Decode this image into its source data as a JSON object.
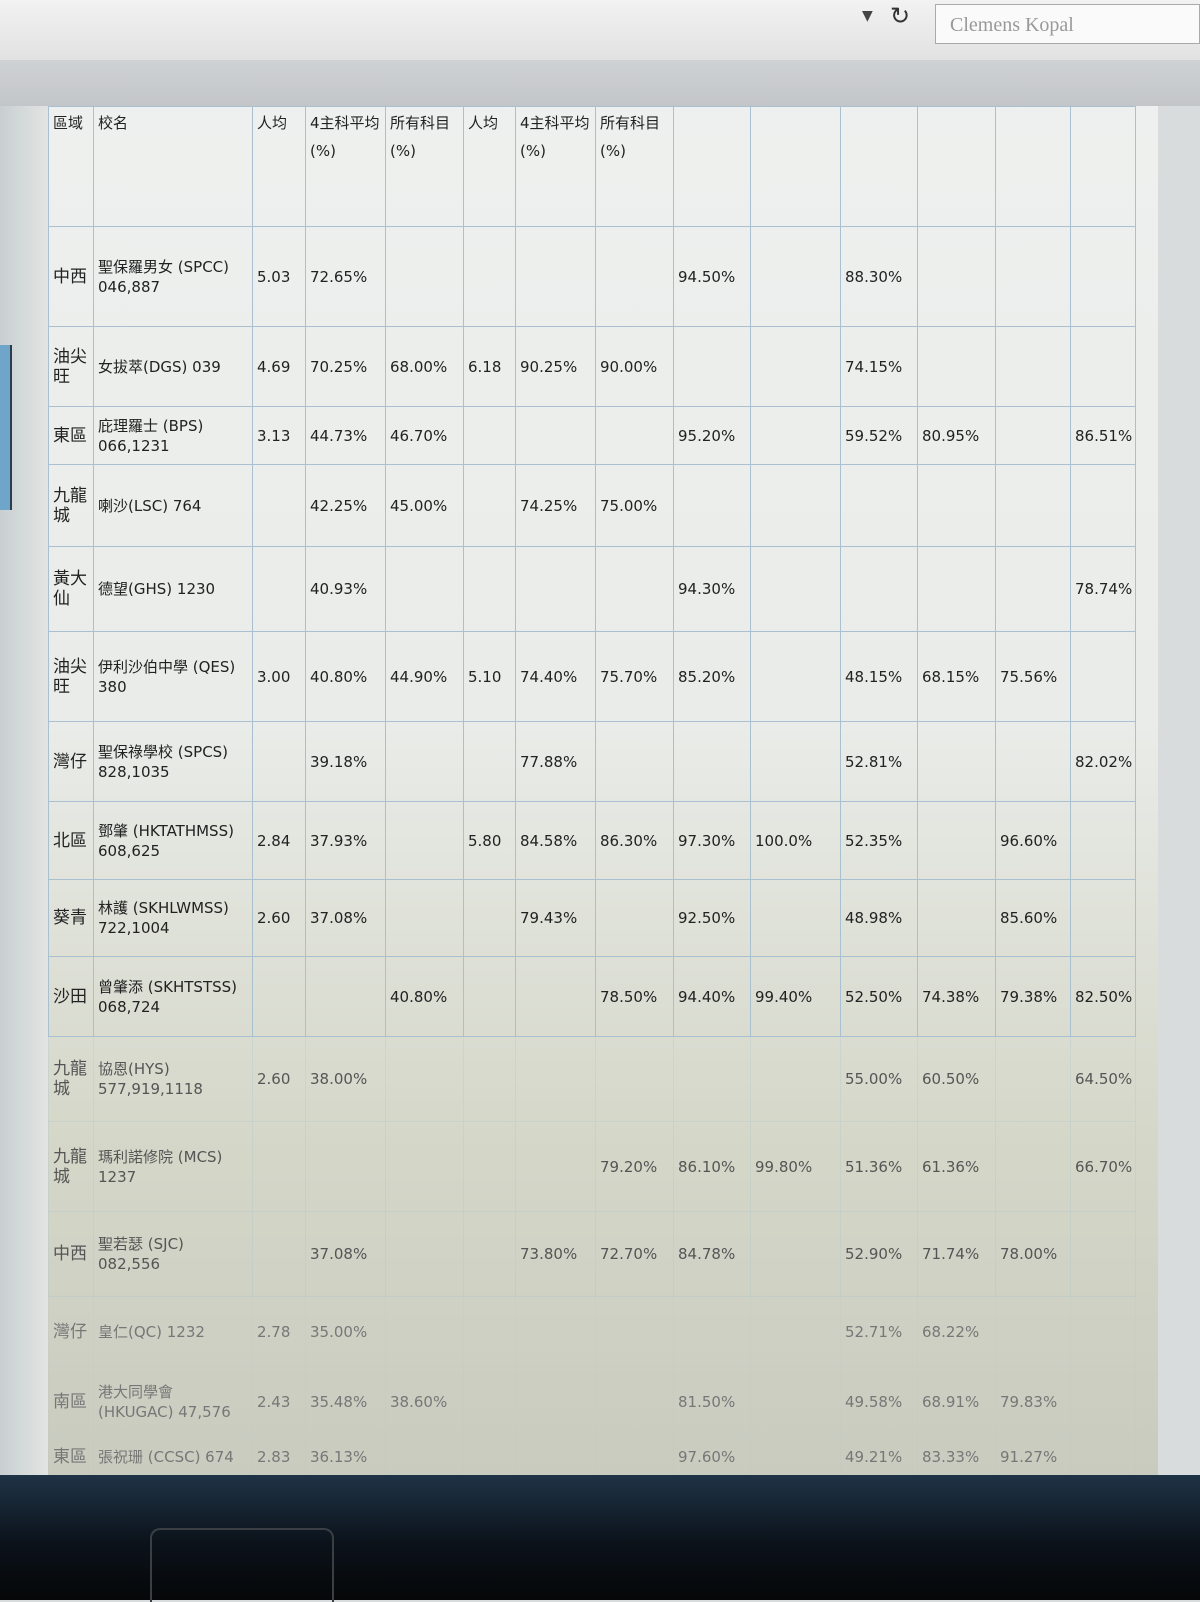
{
  "browser": {
    "dropdown_icon": "chevron-down-icon",
    "refresh_icon": "refresh-icon",
    "search_value": "Clemens Kopal"
  },
  "table": {
    "headers": [
      "區域",
      "校名",
      "人均",
      "4主科平均(%)",
      "所有科目(%)",
      "人均",
      "4主科平均(%)",
      "所有科目(%)",
      "",
      "",
      "",
      "",
      "",
      ""
    ],
    "rows": [
      {
        "region": "中西",
        "name": "聖保羅男女 (SPCC) 046,887",
        "cells": [
          "5.03",
          "72.65%",
          "",
          "",
          "",
          "",
          "94.50%",
          "",
          "88.30%",
          "",
          "",
          ""
        ]
      },
      {
        "region": "油尖旺",
        "name": "女拔萃(DGS) 039",
        "cells": [
          "4.69",
          "70.25%",
          "68.00%",
          "6.18",
          "90.25%",
          "90.00%",
          "",
          "",
          "74.15%",
          "",
          "",
          ""
        ]
      },
      {
        "region": "東區",
        "name": "庇理羅士 (BPS) 066,1231",
        "cells": [
          "3.13",
          "44.73%",
          "46.70%",
          "",
          "",
          "",
          "95.20%",
          "",
          "59.52%",
          "80.95%",
          "",
          "86.51%"
        ]
      },
      {
        "region": "九龍城",
        "name": "喇沙(LSC) 764",
        "cells": [
          "",
          "42.25%",
          "45.00%",
          "",
          "74.25%",
          "75.00%",
          "",
          "",
          "",
          "",
          "",
          ""
        ]
      },
      {
        "region": "黃大仙",
        "name": "德望(GHS) 1230",
        "cells": [
          "",
          "40.93%",
          "",
          "",
          "",
          "",
          "94.30%",
          "",
          "",
          "",
          "",
          "78.74%"
        ]
      },
      {
        "region": "油尖旺",
        "name": "伊利沙伯中學 (QES) 380",
        "cells": [
          "3.00",
          "40.80%",
          "44.90%",
          "5.10",
          "74.40%",
          "75.70%",
          "85.20%",
          "",
          "48.15%",
          "68.15%",
          "75.56%",
          ""
        ]
      },
      {
        "region": "灣仔",
        "name": "聖保祿學校 (SPCS) 828,1035",
        "cells": [
          "",
          "39.18%",
          "",
          "",
          "77.88%",
          "",
          "",
          "",
          "52.81%",
          "",
          "",
          "82.02%"
        ]
      },
      {
        "region": "北區",
        "name": "鄧肇 (HKTATHMSS) 608,625",
        "cells": [
          "2.84",
          "37.93%",
          "",
          "5.80",
          "84.58%",
          "86.30%",
          "97.30%",
          "100.0%",
          "52.35%",
          "",
          "96.60%",
          ""
        ]
      },
      {
        "region": "葵青",
        "name": "林護 (SKHLWMSS) 722,1004",
        "cells": [
          "2.60",
          "37.08%",
          "",
          "",
          "79.43%",
          "",
          "92.50%",
          "",
          "48.98%",
          "",
          "85.60%",
          ""
        ]
      },
      {
        "region": "沙田",
        "name": "曾肇添 (SKHTSTSS) 068,724",
        "cells": [
          "",
          "",
          "40.80%",
          "",
          "",
          "78.50%",
          "94.40%",
          "99.40%",
          "52.50%",
          "74.38%",
          "79.38%",
          "82.50%"
        ]
      },
      {
        "region": "九龍城",
        "name": "協恩(HYS) 577,919,1118",
        "cells": [
          "2.60",
          "38.00%",
          "",
          "",
          "",
          "",
          "",
          "",
          "55.00%",
          "60.50%",
          "",
          "64.50%"
        ]
      },
      {
        "region": "九龍城",
        "name": "瑪利諾修院 (MCS) 1237",
        "cells": [
          "",
          "",
          "",
          "",
          "",
          "79.20%",
          "86.10%",
          "99.80%",
          "51.36%",
          "61.36%",
          "",
          "66.70%"
        ]
      },
      {
        "region": "中西",
        "name": "聖若瑟 (SJC) 082,556",
        "cells": [
          "",
          "37.08%",
          "",
          "",
          "73.80%",
          "72.70%",
          "84.78%",
          "",
          "52.90%",
          "71.74%",
          "78.00%",
          ""
        ]
      },
      {
        "region": "灣仔",
        "name": "皇仁(QC) 1232",
        "cells": [
          "2.78",
          "35.00%",
          "",
          "",
          "",
          "",
          "",
          "",
          "52.71%",
          "68.22%",
          "",
          ""
        ]
      },
      {
        "region": "南區",
        "name": "港大同學會 (HKUGAC) 47,576",
        "cells": [
          "2.43",
          "35.48%",
          "38.60%",
          "",
          "",
          "",
          "81.50%",
          "",
          "49.58%",
          "68.91%",
          "79.83%",
          ""
        ]
      },
      {
        "region": "東區",
        "name": "張祝珊 (CCSC) 674",
        "cells": [
          "2.83",
          "36.13%",
          "",
          "",
          "",
          "",
          "97.60%",
          "",
          "49.21%",
          "83.33%",
          "91.27%",
          ""
        ]
      }
    ]
  }
}
